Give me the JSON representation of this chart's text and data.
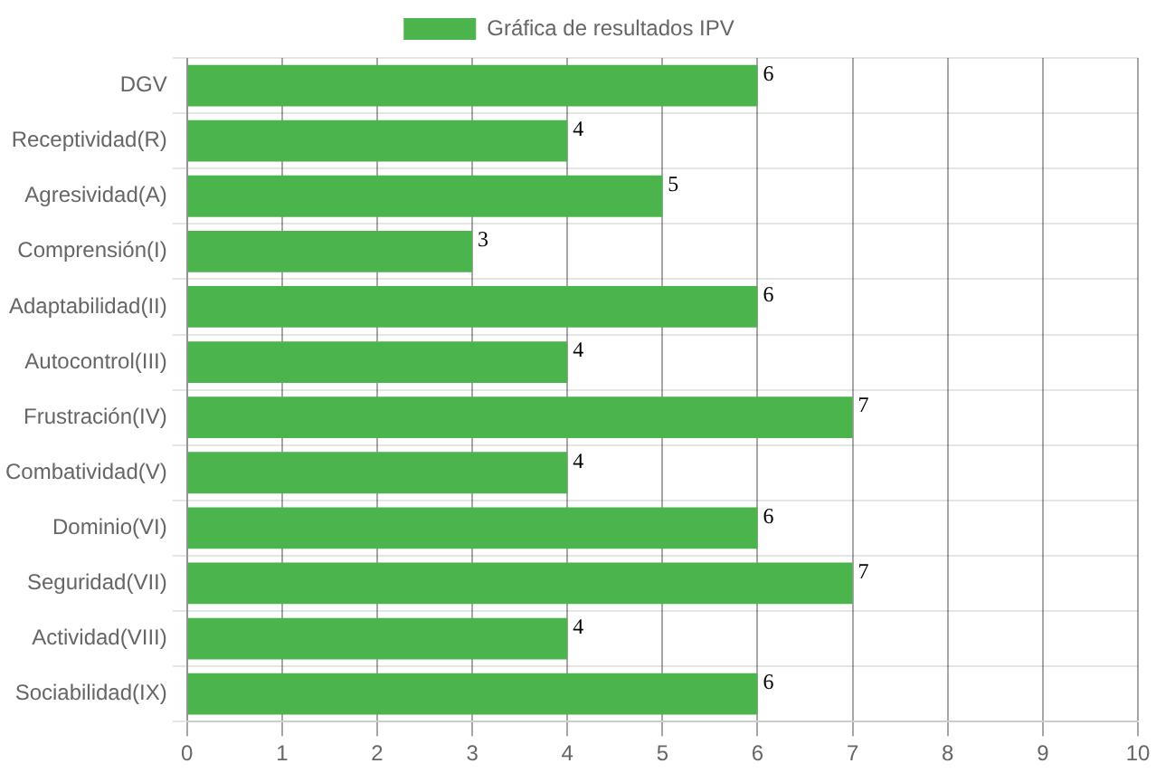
{
  "chart_data": {
    "type": "bar",
    "orientation": "horizontal",
    "categories": [
      "DGV",
      "Receptividad(R)",
      "Agresividad(A)",
      "Comprensión(I)",
      "Adaptabilidad(II)",
      "Autocontrol(III)",
      "Frustración(IV)",
      "Combatividad(V)",
      "Dominio(VI)",
      "Seguridad(VII)",
      "Actividad(VIII)",
      "Sociabilidad(IX)"
    ],
    "series": [
      {
        "name": "Gráfica de resultados IPV",
        "color": "#4cb44c",
        "values": [
          6,
          4,
          5,
          3,
          6,
          4,
          7,
          4,
          6,
          7,
          4,
          6
        ]
      }
    ],
    "xlim": [
      0,
      10
    ],
    "xticks": [
      0,
      1,
      2,
      3,
      4,
      5,
      6,
      7,
      8,
      9,
      10
    ],
    "grid": true,
    "legend": "top",
    "data_labels": true
  }
}
